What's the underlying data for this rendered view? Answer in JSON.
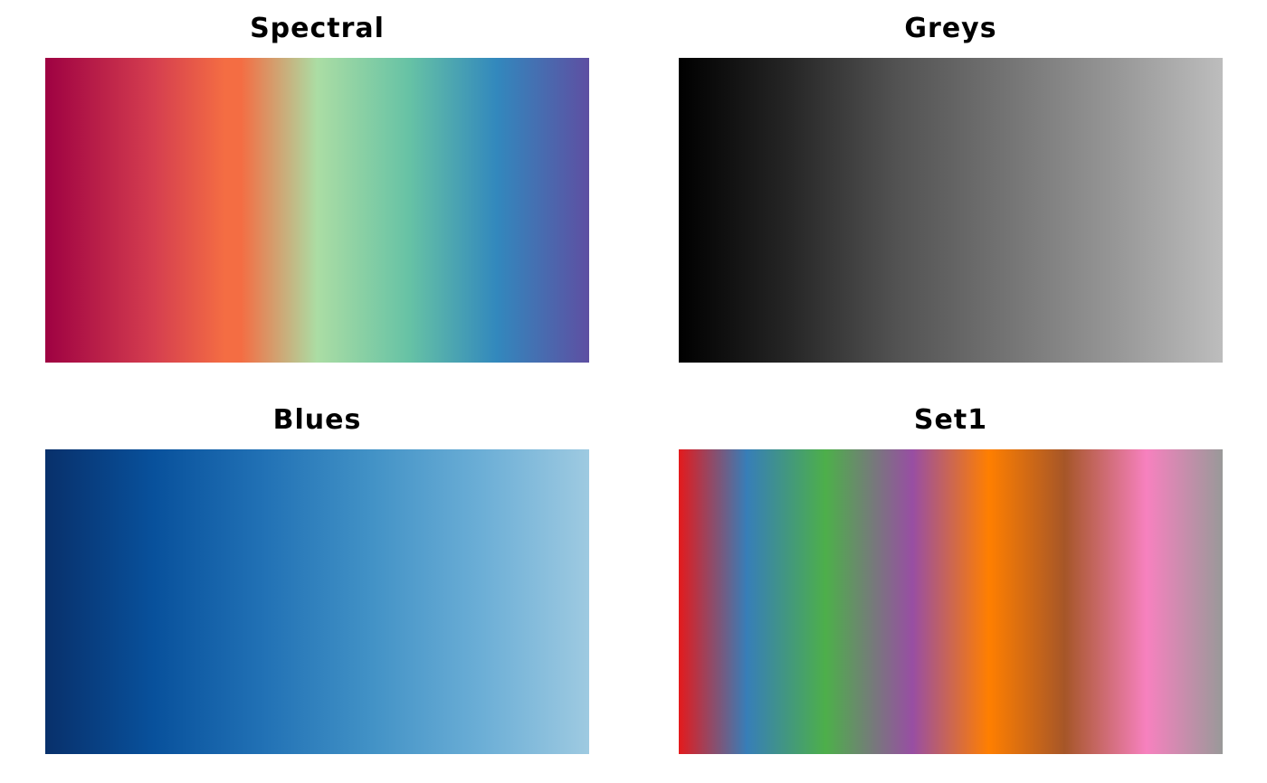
{
  "chart_data": [
    {
      "type": "heatmap",
      "title": "Spectral",
      "colors": [
        "#9E0142",
        "#D53E4F",
        "#F46D43",
        "#F46D43",
        "#ABDDA4",
        "#66C2A5",
        "#3288BD",
        "#5E4FA2"
      ],
      "stops": [
        0,
        0.2,
        0.33,
        0.36,
        0.5,
        0.67,
        0.83,
        1
      ]
    },
    {
      "type": "heatmap",
      "title": "Greys",
      "colors": [
        "#000000",
        "#252525",
        "#525252",
        "#737373",
        "#969696",
        "#BDBDBD"
      ],
      "stops": [
        0,
        0.2,
        0.4,
        0.6,
        0.8,
        1
      ]
    },
    {
      "type": "heatmap",
      "title": "Blues",
      "colors": [
        "#08306B",
        "#08519C",
        "#2171B5",
        "#4292C6",
        "#6BAED6",
        "#9ECAE1"
      ],
      "stops": [
        0,
        0.2,
        0.4,
        0.6,
        0.8,
        1
      ]
    },
    {
      "type": "heatmap",
      "title": "Set1",
      "colors": [
        "#E41A1C",
        "#377EB8",
        "#4DAF4A",
        "#984EA3",
        "#FF7F00",
        "#A65628",
        "#F781BF",
        "#999999"
      ],
      "stops": [
        0,
        0.125,
        0.27,
        0.43,
        0.57,
        0.71,
        0.86,
        1
      ]
    }
  ]
}
